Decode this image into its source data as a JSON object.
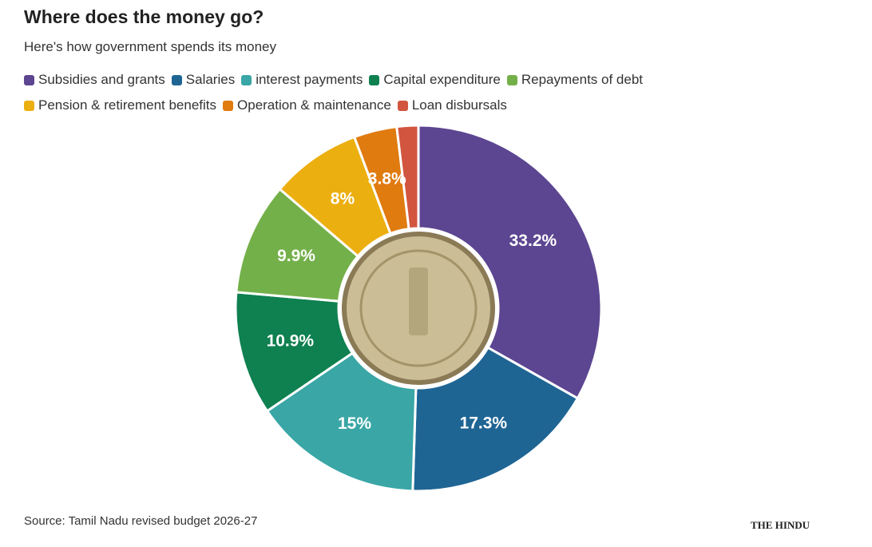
{
  "title": "Where does the money go?",
  "subtitle": "Here's how government spends its money",
  "chart_data": {
    "type": "donut",
    "categories": [
      "Subsidies and grants",
      "Salaries",
      "interest payments",
      "Capital expenditure",
      "Repayments of debt",
      "Pension & retirement benefits",
      "Operation & maintenance",
      "Loan disbursals"
    ],
    "values": [
      33.2,
      17.3,
      15,
      10.9,
      9.9,
      8,
      3.8,
      1.9
    ],
    "value_labels": [
      "33.2%",
      "17.3%",
      "15%",
      "10.9%",
      "9.9%",
      "8%",
      "3.8%",
      null
    ],
    "colors": [
      "#5c4591",
      "#1f6594",
      "#3aa6a6",
      "#0f8050",
      "#74b04a",
      "#ecaf10",
      "#e07b10",
      "#d25540"
    ]
  },
  "source": "Source: Tamil Nadu revised budget 2026-27",
  "logo": "THE HINDU"
}
